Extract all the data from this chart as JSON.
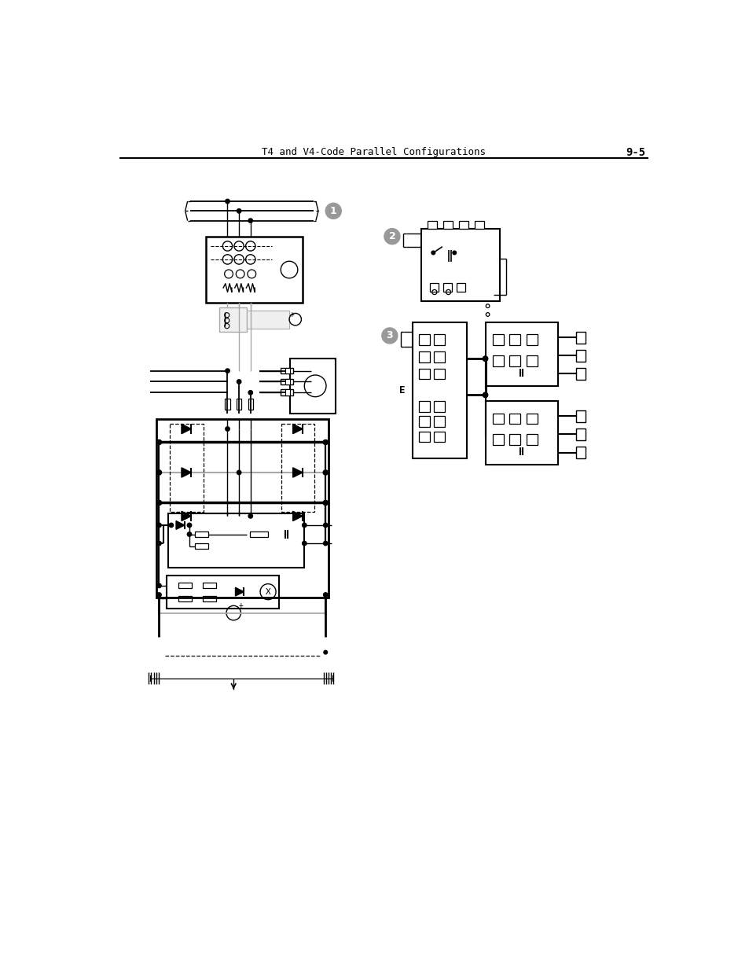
{
  "title": "T4 and V4-Code Parallel Configurations",
  "page_num": "9-5",
  "bg_color": "#ffffff",
  "gray_callout": "#999999",
  "light_gray_line": "#aaaaaa"
}
